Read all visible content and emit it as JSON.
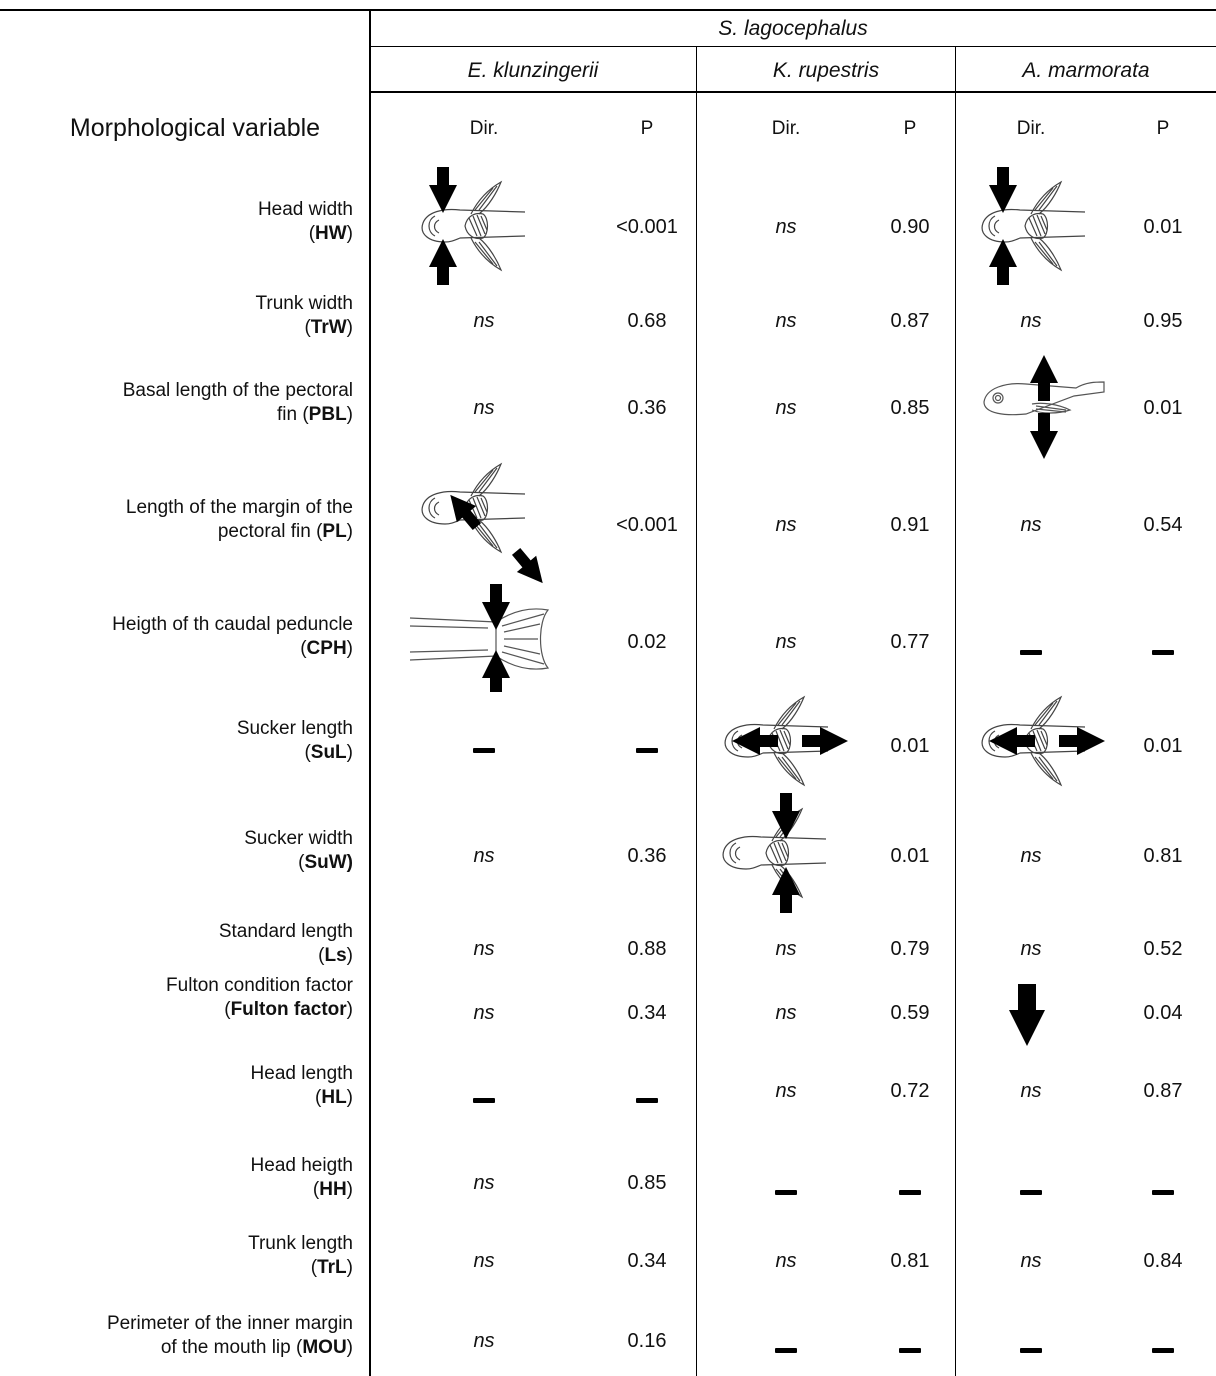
{
  "group_header": "S. lagocephalus",
  "species": [
    "E. klunzingerii",
    "K. rupestris",
    "A. marmorata"
  ],
  "column_headers": {
    "variable": "Morphological variable",
    "dir": "Dir.",
    "p": "P"
  },
  "dash_symbol": "−",
  "rows": [
    {
      "name": "Head width",
      "abbr": "HW",
      "line1": "Head width",
      "line2_pre": "(",
      "line2_post": ")",
      "ek": {
        "dir": "fish-dorsal-arrows-inward-head",
        "p": "<0.001"
      },
      "kr": {
        "dir": "ns",
        "p": "0.90"
      },
      "am": {
        "dir": "fish-dorsal-arrows-inward-head",
        "p": "0.01"
      }
    },
    {
      "name": "Trunk width",
      "abbr": "TrW",
      "line1": "Trunk width",
      "line2_pre": "(",
      "line2_post": ")",
      "ek": {
        "dir": "ns",
        "p": "0.68"
      },
      "kr": {
        "dir": "ns",
        "p": "0.87"
      },
      "am": {
        "dir": "ns",
        "p": "0.95"
      }
    },
    {
      "name": "Basal length of the pectoral fin",
      "abbr": "PBL",
      "line1": "Basal length of the pectoral",
      "line2_pre": "fin (",
      "line2_post": ")",
      "ek": {
        "dir": "ns",
        "p": "0.36"
      },
      "kr": {
        "dir": "ns",
        "p": "0.85"
      },
      "am": {
        "dir": "fish-lateral-arrows-outward-vertical",
        "p": "0.01"
      }
    },
    {
      "name": "Length of the margin of the pectoral fin",
      "abbr": "PL",
      "line1": "Length of the margin of the",
      "line2_pre": "pectoral fin (",
      "line2_post": ")",
      "ek": {
        "dir": "fish-dorsal-arrows-along-fin",
        "p": "<0.001"
      },
      "kr": {
        "dir": "ns",
        "p": "0.91"
      },
      "am": {
        "dir": "ns",
        "p": "0.54"
      }
    },
    {
      "name": "Heigth of th caudal peduncle",
      "abbr": "CPH",
      "line1": "Heigth of th caudal peduncle",
      "line2_pre": "(",
      "line2_post": ")",
      "ek": {
        "dir": "tail-arrows-inward",
        "p": "0.02"
      },
      "kr": {
        "dir": "ns",
        "p": "0.77"
      },
      "am": {
        "dir": "dash",
        "p": "dash"
      }
    },
    {
      "name": "Sucker length",
      "abbr": "SuL",
      "line1": "Sucker length",
      "line2_pre": "(",
      "line2_post": ")",
      "ek": {
        "dir": "dash",
        "p": "dash"
      },
      "kr": {
        "dir": "fish-dorsal-arrows-outward-horizontal",
        "p": "0.01"
      },
      "am": {
        "dir": "fish-dorsal-arrows-outward-horizontal",
        "p": "0.01"
      }
    },
    {
      "name": "Sucker width",
      "abbr": "SuW)",
      "line1": "Sucker width",
      "line2_pre": "(",
      "line2_post": "",
      "ek": {
        "dir": "ns",
        "p": "0.36"
      },
      "kr": {
        "dir": "fish-dorsal-arrows-inward-sucker",
        "p": "0.01"
      },
      "am": {
        "dir": "ns",
        "p": "0.81"
      }
    },
    {
      "name": "Standard length",
      "abbr": "Ls",
      "line1": "Standard length",
      "line2_pre": "(",
      "line2_post": ")",
      "ek": {
        "dir": "ns",
        "p": "0.88"
      },
      "kr": {
        "dir": "ns",
        "p": "0.79"
      },
      "am": {
        "dir": "ns",
        "p": "0.52"
      }
    },
    {
      "name": "Fulton condition factor",
      "abbr": "Fulton factor",
      "line1": "Fulton condition factor",
      "line2_pre": "(",
      "line2_post": ")",
      "ek": {
        "dir": "ns",
        "p": "0.34"
      },
      "kr": {
        "dir": "ns",
        "p": "0.59"
      },
      "am": {
        "dir": "arrow-down",
        "p": "0.04"
      }
    },
    {
      "name": "Head length",
      "abbr": "HL",
      "line1": "Head length",
      "line2_pre": "(",
      "line2_post": ")",
      "ek": {
        "dir": "dash",
        "p": "dash"
      },
      "kr": {
        "dir": "ns",
        "p": "0.72"
      },
      "am": {
        "dir": "ns",
        "p": "0.87"
      }
    },
    {
      "name": "Head heigth",
      "abbr": "HH",
      "line1": "Head heigth",
      "line2_pre": "(",
      "line2_post": ")",
      "ek": {
        "dir": "ns",
        "p": "0.85"
      },
      "kr": {
        "dir": "dash",
        "p": "dash"
      },
      "am": {
        "dir": "dash",
        "p": "dash"
      }
    },
    {
      "name": "Trunk length",
      "abbr": "TrL",
      "line1": "Trunk length",
      "line2_pre": "(",
      "line2_post": ")",
      "ek": {
        "dir": "ns",
        "p": "0.34"
      },
      "kr": {
        "dir": "ns",
        "p": "0.81"
      },
      "am": {
        "dir": "ns",
        "p": "0.84"
      }
    },
    {
      "name": "Perimeter of the inner margin of the mouth lip",
      "abbr": "MOU",
      "line1": "Perimeter of the inner margin",
      "line2_pre": "of the mouth lip (",
      "line2_post": ")",
      "ek": {
        "dir": "ns",
        "p": "0.16"
      },
      "kr": {
        "dir": "dash",
        "p": "dash"
      },
      "am": {
        "dir": "dash",
        "p": "dash"
      }
    }
  ]
}
